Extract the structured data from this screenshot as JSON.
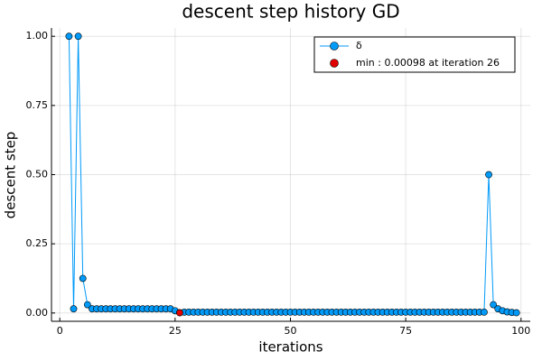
{
  "chart_data": {
    "type": "line",
    "title": "descent step history GD",
    "xlabel": "iterations",
    "ylabel": "descent step",
    "xlim": [
      -1.8,
      102
    ],
    "ylim": [
      -0.03,
      1.03
    ],
    "xticks": [
      0,
      25,
      50,
      75,
      100
    ],
    "yticks": [
      {
        "value": 0,
        "label": "0.00"
      },
      {
        "value": 0.25,
        "label": "0.25"
      },
      {
        "value": 0.5,
        "label": "0.50"
      },
      {
        "value": 0.75,
        "label": "0.75"
      },
      {
        "value": 1,
        "label": "1.00"
      }
    ],
    "grid": true,
    "legend": "top-right",
    "series": [
      {
        "name": "δ",
        "color": "#009af9",
        "line": true,
        "x": [
          2,
          3,
          4,
          5,
          6,
          7,
          8,
          9,
          10,
          11,
          12,
          13,
          14,
          15,
          16,
          17,
          18,
          19,
          20,
          21,
          22,
          23,
          24,
          25,
          26,
          27,
          28,
          29,
          30,
          31,
          32,
          33,
          34,
          35,
          36,
          37,
          38,
          39,
          40,
          41,
          42,
          43,
          44,
          45,
          46,
          47,
          48,
          49,
          50,
          51,
          52,
          53,
          54,
          55,
          56,
          57,
          58,
          59,
          60,
          61,
          62,
          63,
          64,
          65,
          66,
          67,
          68,
          69,
          70,
          71,
          72,
          73,
          74,
          75,
          76,
          77,
          78,
          79,
          80,
          81,
          82,
          83,
          84,
          85,
          86,
          87,
          88,
          89,
          90,
          91,
          92,
          93,
          94,
          95,
          96,
          97,
          98,
          99
        ],
        "values": [
          1.0,
          0.015,
          1.0,
          0.125,
          0.03,
          0.015,
          0.015,
          0.015,
          0.015,
          0.015,
          0.015,
          0.015,
          0.015,
          0.015,
          0.015,
          0.015,
          0.015,
          0.015,
          0.015,
          0.015,
          0.015,
          0.015,
          0.015,
          0.008,
          0.00098,
          0.003,
          0.003,
          0.003,
          0.003,
          0.003,
          0.003,
          0.003,
          0.003,
          0.003,
          0.003,
          0.003,
          0.003,
          0.003,
          0.003,
          0.003,
          0.003,
          0.003,
          0.003,
          0.003,
          0.003,
          0.003,
          0.003,
          0.003,
          0.003,
          0.003,
          0.003,
          0.003,
          0.003,
          0.003,
          0.003,
          0.003,
          0.003,
          0.003,
          0.003,
          0.003,
          0.003,
          0.003,
          0.003,
          0.003,
          0.003,
          0.003,
          0.003,
          0.003,
          0.003,
          0.003,
          0.003,
          0.003,
          0.003,
          0.003,
          0.003,
          0.003,
          0.003,
          0.003,
          0.003,
          0.003,
          0.003,
          0.003,
          0.003,
          0.003,
          0.003,
          0.003,
          0.003,
          0.003,
          0.003,
          0.003,
          0.003,
          0.5,
          0.03,
          0.015,
          0.008,
          0.004,
          0.002,
          0.001
        ]
      },
      {
        "name": "min : 0.00098 at iteration 26",
        "color": "#e00000",
        "line": false,
        "x": [
          26
        ],
        "values": [
          0.00098
        ]
      }
    ]
  }
}
